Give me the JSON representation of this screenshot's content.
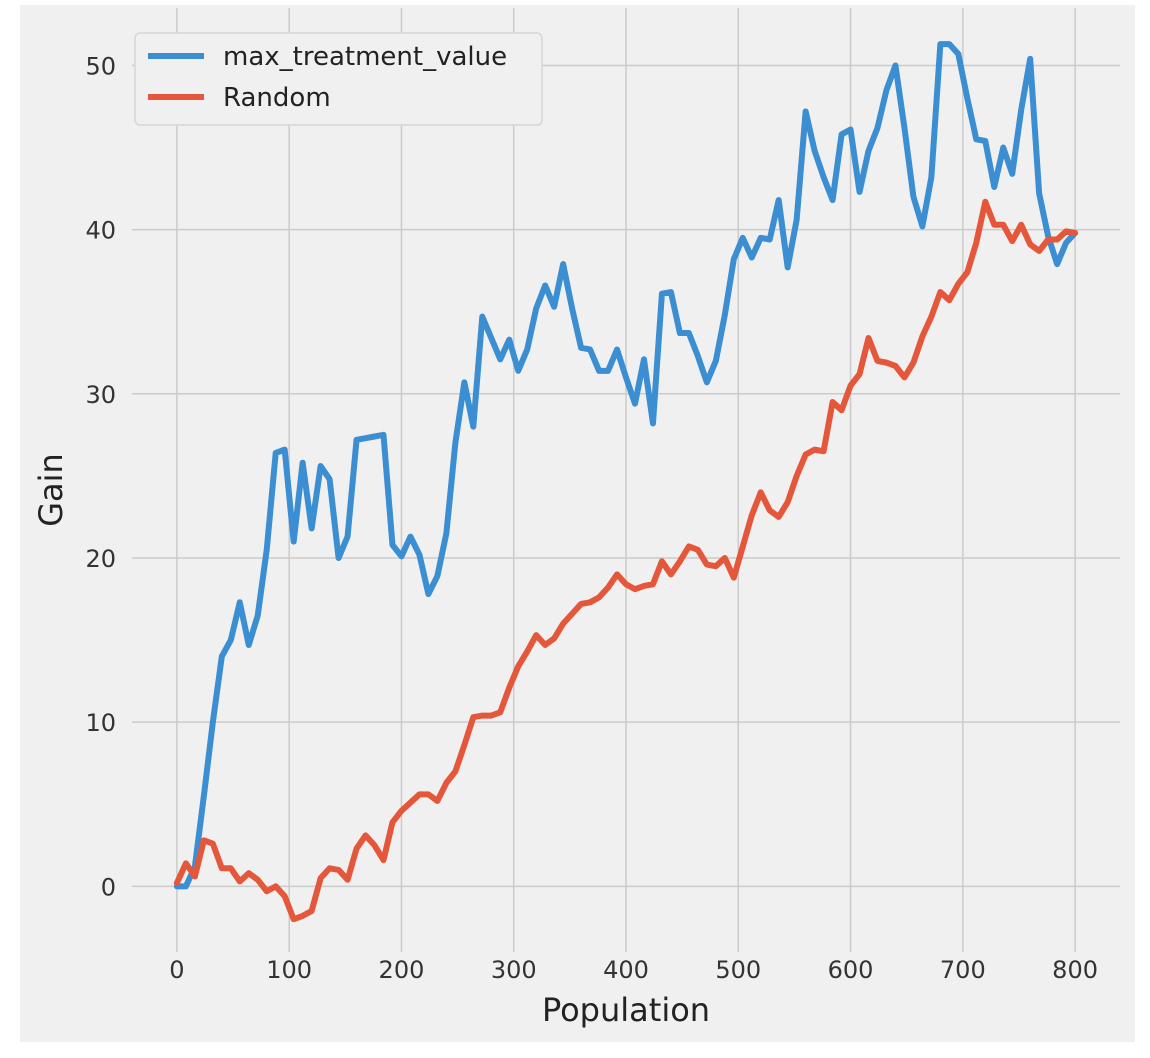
{
  "chart_data": {
    "type": "line",
    "title": "",
    "xlabel": "Population",
    "ylabel": "Gain",
    "xlim": [
      -40,
      840
    ],
    "ylim": [
      -4,
      53.5
    ],
    "xticks": [
      0,
      100,
      200,
      300,
      400,
      500,
      600,
      700,
      800
    ],
    "yticks": [
      0,
      10,
      20,
      30,
      40,
      50
    ],
    "grid": true,
    "legend_position": "top-left",
    "background": "#f0f0f0",
    "series": [
      {
        "name": "max_treatment_value",
        "color": "#3b8ed1",
        "x": [
          0,
          8,
          16,
          24,
          32,
          40,
          48,
          56,
          64,
          72,
          80,
          88,
          96,
          104,
          112,
          120,
          128,
          136,
          144,
          152,
          160,
          168,
          176,
          184,
          192,
          200,
          208,
          216,
          224,
          232,
          240,
          248,
          256,
          264,
          272,
          280,
          288,
          296,
          304,
          312,
          320,
          328,
          336,
          344,
          352,
          360,
          368,
          376,
          384,
          392,
          400,
          408,
          416,
          424,
          432,
          440,
          448,
          456,
          464,
          472,
          480,
          488,
          496,
          504,
          512,
          520,
          528,
          536,
          544,
          552,
          560,
          568,
          576,
          584,
          592,
          600,
          608,
          616,
          624,
          632,
          640,
          648,
          656,
          664,
          672,
          680,
          688,
          696,
          704,
          712,
          720,
          728,
          736,
          744,
          752,
          760,
          768,
          776,
          784,
          792,
          800
        ],
        "y": [
          0,
          0,
          1.2,
          5.5,
          10,
          14,
          15,
          17.3,
          14.7,
          16.5,
          20.5,
          26.4,
          26.6,
          21,
          25.8,
          21.8,
          25.6,
          24.8,
          20,
          21.3,
          27.2,
          27.3,
          27.4,
          27.5,
          20.8,
          20.1,
          21.3,
          20.2,
          17.8,
          18.9,
          21.5,
          27,
          30.7,
          28,
          34.7,
          33.4,
          32.1,
          33.3,
          31.4,
          32.7,
          35.2,
          36.6,
          35.3,
          37.9,
          35.2,
          32.8,
          32.7,
          31.4,
          31.4,
          32.7,
          31,
          29.4,
          32.1,
          28.2,
          36.1,
          36.2,
          33.7,
          33.7,
          32.3,
          30.7,
          32,
          34.8,
          38.2,
          39.5,
          38.3,
          39.5,
          39.4,
          41.8,
          37.7,
          40.6,
          47.2,
          44.8,
          43.2,
          41.8,
          45.8,
          46.1,
          42.3,
          44.8,
          46.2,
          48.5,
          50,
          46.2,
          42,
          40.2,
          43.2,
          51.3,
          51.3,
          50.7,
          48,
          45.5,
          45.4,
          42.6,
          45,
          43.4,
          47.3,
          50.4,
          42.2,
          39.6,
          37.9,
          39.2,
          39.8
        ]
      },
      {
        "name": "Random",
        "color": "#e5573a",
        "x": [
          0,
          8,
          16,
          24,
          32,
          40,
          48,
          56,
          64,
          72,
          80,
          88,
          96,
          104,
          112,
          120,
          128,
          136,
          144,
          152,
          160,
          168,
          176,
          184,
          192,
          200,
          208,
          216,
          224,
          232,
          240,
          248,
          256,
          264,
          272,
          280,
          288,
          296,
          304,
          312,
          320,
          328,
          336,
          344,
          352,
          360,
          368,
          376,
          384,
          392,
          400,
          408,
          416,
          424,
          432,
          440,
          448,
          456,
          464,
          472,
          480,
          488,
          496,
          504,
          512,
          520,
          528,
          536,
          544,
          552,
          560,
          568,
          576,
          584,
          592,
          600,
          608,
          616,
          624,
          632,
          640,
          648,
          656,
          664,
          672,
          680,
          688,
          696,
          704,
          712,
          720,
          728,
          736,
          744,
          752,
          760,
          768,
          776,
          784,
          792,
          800
        ],
        "y": [
          0.2,
          1.4,
          0.6,
          2.8,
          2.6,
          1.1,
          1.1,
          0.3,
          0.8,
          0.4,
          -0.3,
          0,
          -0.6,
          -2,
          -1.8,
          -1.5,
          0.5,
          1.1,
          1,
          0.4,
          2.3,
          3.1,
          2.5,
          1.6,
          3.9,
          4.6,
          5.1,
          5.6,
          5.6,
          5.2,
          6.3,
          7,
          8.6,
          10.3,
          10.4,
          10.4,
          10.6,
          12.1,
          13.4,
          14.3,
          15.3,
          14.7,
          15.1,
          16,
          16.6,
          17.2,
          17.3,
          17.6,
          18.2,
          19,
          18.4,
          18.1,
          18.3,
          18.4,
          19.8,
          19,
          19.8,
          20.7,
          20.5,
          19.6,
          19.5,
          20,
          18.8,
          20.7,
          22.6,
          24,
          22.9,
          22.5,
          23.4,
          25,
          26.3,
          26.6,
          26.5,
          29.5,
          29,
          30.5,
          31.2,
          33.4,
          32,
          31.9,
          31.7,
          31,
          31.9,
          33.5,
          34.7,
          36.2,
          35.7,
          36.7,
          37.4,
          39.2,
          41.7,
          40.3,
          40.3,
          39.3,
          40.3,
          39.1,
          38.7,
          39.4,
          39.4,
          39.9,
          39.8
        ]
      }
    ]
  }
}
